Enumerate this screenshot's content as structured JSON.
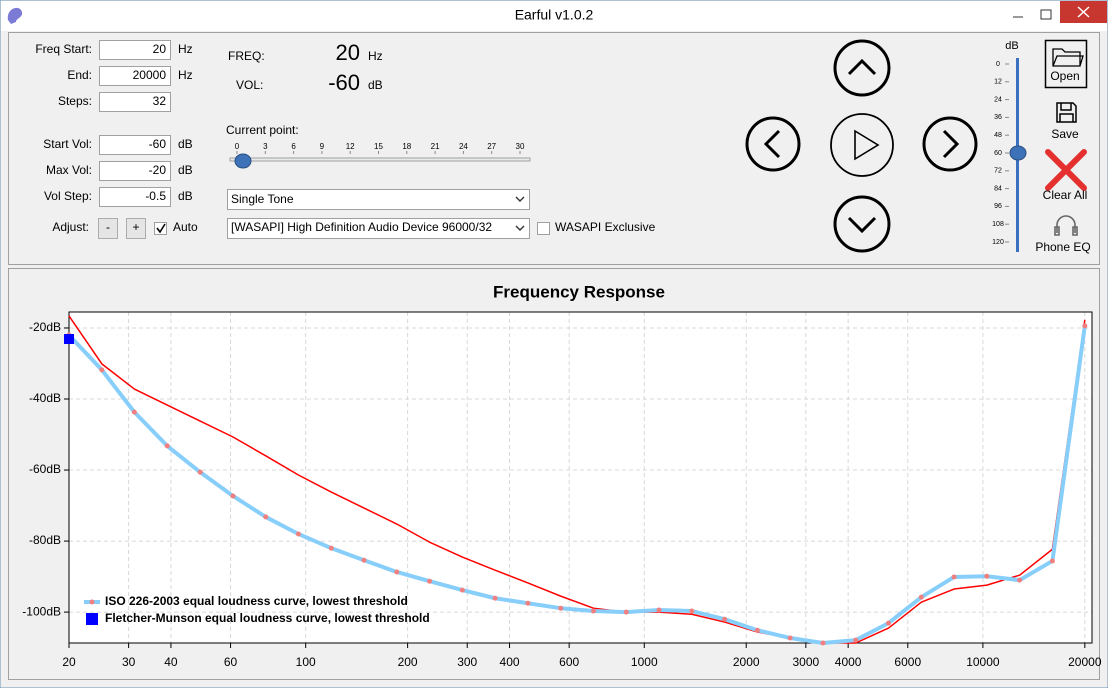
{
  "window": {
    "title": "Earful v1.0.2"
  },
  "fields": [
    {
      "label": "Freq Start:",
      "value": 20,
      "unit": "Hz"
    },
    {
      "label": "End:",
      "value": 20000,
      "unit": "Hz"
    },
    {
      "label": "Steps:",
      "value": 32
    },
    {
      "label": "Start Vol:",
      "value": -60,
      "unit": "dB"
    },
    {
      "label": "Max Vol:",
      "value": -20,
      "unit": "dB"
    },
    {
      "label": "Vol Step:",
      "value": -0.5,
      "unit": "dB"
    }
  ],
  "adjust": {
    "label": "Adjust:",
    "minus": "-",
    "plus": "+",
    "auto": "Auto",
    "auto_checked": true
  },
  "readout": {
    "freq_label": "FREQ:",
    "freq": 20,
    "freq_unit": "Hz",
    "vol_label": "VOL:",
    "vol": -60,
    "vol_unit": "dB"
  },
  "current_point": {
    "label": "Current point:",
    "ticks": [
      0,
      3,
      6,
      9,
      12,
      15,
      18,
      21,
      24,
      27,
      30
    ],
    "value": 0
  },
  "mode_select": "Single Tone",
  "device_select": "[WASAPI] High Definition Audio Device 96000/32",
  "wasapi_exclusive": {
    "label": "WASAPI Exclusive",
    "checked": false
  },
  "volume_slider": {
    "label": "dB",
    "ticks": [
      0,
      12,
      24,
      36,
      48,
      60,
      72,
      84,
      96,
      108,
      120
    ],
    "value": 60
  },
  "buttons": {
    "open": "Open",
    "save": "Save",
    "clear_all": "Clear All",
    "phone_eq": "Phone EQ"
  },
  "chart_data": {
    "type": "line",
    "title": "Frequency Response",
    "xscale": "log",
    "grid": true,
    "legend": "lower left",
    "x": [
      20,
      25,
      31.2,
      39,
      48.8,
      61,
      76.2,
      95.2,
      119,
      148.7,
      185.8,
      232.2,
      290.2,
      362.6,
      453.2,
      566.4,
      707.9,
      884.6,
      1105.5,
      1381.6,
      1726.6,
      2157.7,
      2696.5,
      3369.9,
      4211.5,
      5263.2,
      6577.5,
      8220,
      10272.8,
      12838.1,
      16044.1,
      20000
    ],
    "xlim": [
      20,
      21000
    ],
    "ylim": [
      -108.7,
      -15.5
    ],
    "xticks": [
      20,
      30,
      40,
      60,
      100,
      200,
      300,
      400,
      600,
      1000,
      2000,
      3000,
      4000,
      6000,
      10000,
      20000
    ],
    "yticks": [
      {
        "value": -20,
        "label": "-20dB"
      },
      {
        "value": -40,
        "label": "-40dB"
      },
      {
        "value": -60,
        "label": "-60dB"
      },
      {
        "value": -80,
        "label": "-80dB"
      },
      {
        "value": -100,
        "label": "-100dB"
      }
    ],
    "series": [
      {
        "color": "#ff0000",
        "line_width": 1.5,
        "values": [
          -16.6,
          -30.1,
          -37.2,
          -41.7,
          -46.2,
          -50.7,
          -56,
          -61.4,
          -66.2,
          -70.7,
          -75.2,
          -80.3,
          -84.5,
          -88.2,
          -91.8,
          -95.5,
          -98.9,
          -100,
          -100,
          -100.6,
          -102.8,
          -105.6,
          -107.3,
          -108.7,
          -108.7,
          -104.5,
          -97.2,
          -93.5,
          -92.4,
          -89.6,
          -82.3,
          -17.7
        ]
      },
      {
        "name": "ISO 226-2003 equal loudness curve, lowest threshold",
        "color": "#87cefa",
        "marker_color": "#f08080",
        "marker": "circle",
        "line_width": 4,
        "values": [
          -22,
          -31.8,
          -43.7,
          -53.2,
          -60.6,
          -67.3,
          -73.2,
          -78,
          -82,
          -85.4,
          -88.7,
          -91.3,
          -93.8,
          -96.1,
          -97.5,
          -98.9,
          -99.7,
          -100,
          -99.4,
          -99.7,
          -102,
          -105.1,
          -107.3,
          -108.7,
          -107.9,
          -103.1,
          -95.8,
          -90.1,
          -89.9,
          -91,
          -85.6,
          -19.4
        ]
      },
      {
        "name": "Fletcher-Munson equal loudness curve, lowest threshold",
        "color": "#0000ff",
        "marker": "square",
        "line_width": 0,
        "values": [
          -23.1,
          null,
          null,
          null,
          null,
          null,
          null,
          null,
          null,
          null,
          null,
          null,
          null,
          null,
          null,
          null,
          null,
          null,
          null,
          null,
          null,
          null,
          null,
          null,
          null,
          null,
          null,
          null,
          null,
          null,
          null,
          null
        ]
      }
    ]
  }
}
